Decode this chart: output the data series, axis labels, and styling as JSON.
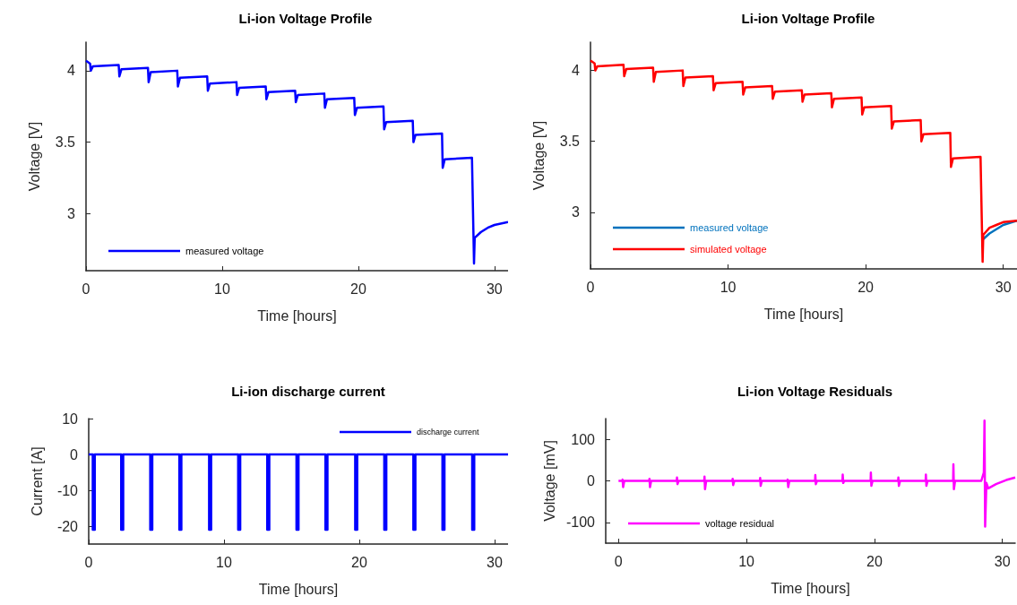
{
  "chart_data": [
    {
      "type": "line",
      "title": "Li-ion Voltage Profile",
      "xlabel": "Time [hours]",
      "ylabel": "Voltage [V]",
      "xlim": [
        0,
        31
      ],
      "ylim": [
        2.6,
        4.2
      ],
      "xticks": [
        0,
        10,
        20,
        30
      ],
      "yticks": [
        3,
        3.5,
        4
      ],
      "grid": false,
      "legend": "bottom left",
      "marker": "none",
      "line_style": "solid",
      "x": [
        0,
        0.3,
        0.35,
        0.5,
        2.4,
        2.45,
        2.6,
        4.55,
        4.6,
        4.75,
        6.7,
        6.75,
        6.9,
        8.9,
        8.95,
        9.1,
        11.05,
        11.1,
        11.25,
        13.2,
        13.25,
        13.4,
        15.36,
        15.41,
        15.56,
        17.5,
        17.55,
        17.7,
        19.7,
        19.75,
        19.9,
        21.85,
        21.9,
        22.05,
        24.0,
        24.05,
        24.2,
        26.15,
        26.2,
        26.35,
        28.35,
        28.5,
        28.55,
        29,
        29.5,
        30,
        31
      ],
      "series": [
        {
          "name": "measured voltage",
          "color": "#0000ff",
          "values": [
            4.07,
            4.05,
            4.0,
            4.03,
            4.04,
            3.96,
            4.01,
            4.02,
            3.92,
            3.99,
            4.0,
            3.89,
            3.95,
            3.96,
            3.86,
            3.91,
            3.92,
            3.83,
            3.88,
            3.89,
            3.8,
            3.85,
            3.86,
            3.78,
            3.83,
            3.84,
            3.74,
            3.8,
            3.81,
            3.69,
            3.74,
            3.75,
            3.59,
            3.64,
            3.65,
            3.5,
            3.55,
            3.56,
            3.32,
            3.38,
            3.39,
            2.65,
            2.83,
            2.87,
            2.9,
            2.92,
            2.94
          ]
        }
      ]
    },
    {
      "type": "line",
      "title": "Li-ion Voltage Profile",
      "xlabel": "Time [hours]",
      "ylabel": "Voltage [V]",
      "xlim": [
        0,
        31
      ],
      "ylim": [
        2.6,
        4.2
      ],
      "xticks": [
        0,
        10,
        20,
        30
      ],
      "yticks": [
        3,
        3.5,
        4
      ],
      "grid": false,
      "legend": "bottom left",
      "marker": "none",
      "line_style": "solid",
      "x": [
        0,
        0.3,
        0.35,
        0.5,
        2.4,
        2.45,
        2.6,
        4.55,
        4.6,
        4.75,
        6.7,
        6.75,
        6.9,
        8.9,
        8.95,
        9.1,
        11.05,
        11.1,
        11.25,
        13.2,
        13.25,
        13.4,
        15.36,
        15.41,
        15.56,
        17.5,
        17.55,
        17.7,
        19.7,
        19.75,
        19.9,
        21.85,
        21.9,
        22.05,
        24.0,
        24.05,
        24.2,
        26.15,
        26.2,
        26.35,
        28.35,
        28.5,
        28.55,
        29,
        29.5,
        30,
        31
      ],
      "series": [
        {
          "name": "measured voltage",
          "color": "#0072bd",
          "values": [
            null,
            null,
            null,
            null,
            null,
            null,
            null,
            null,
            null,
            null,
            null,
            null,
            null,
            null,
            null,
            null,
            null,
            null,
            null,
            null,
            null,
            null,
            null,
            null,
            null,
            null,
            null,
            null,
            null,
            null,
            null,
            null,
            null,
            null,
            null,
            null,
            null,
            null,
            null,
            null,
            null,
            null,
            2.81,
            2.85,
            2.88,
            2.91,
            2.94
          ]
        },
        {
          "name": "simulated voltage",
          "color": "#ff0000",
          "values": [
            4.07,
            4.05,
            4.0,
            4.03,
            4.04,
            3.96,
            4.01,
            4.02,
            3.92,
            3.99,
            4.0,
            3.89,
            3.95,
            3.96,
            3.86,
            3.91,
            3.92,
            3.83,
            3.88,
            3.89,
            3.8,
            3.85,
            3.86,
            3.78,
            3.83,
            3.84,
            3.74,
            3.8,
            3.81,
            3.69,
            3.74,
            3.75,
            3.59,
            3.64,
            3.65,
            3.5,
            3.55,
            3.56,
            3.32,
            3.38,
            3.39,
            2.65,
            2.84,
            2.89,
            2.91,
            2.93,
            2.94
          ]
        }
      ]
    },
    {
      "type": "line",
      "title": "Li-ion discharge current",
      "xlabel": "Time [hours]",
      "ylabel": "Current [A]",
      "xlim": [
        0,
        31
      ],
      "ylim": [
        -25,
        10
      ],
      "xticks": [
        0,
        10,
        20,
        30
      ],
      "yticks": [
        -20,
        -10,
        0,
        10
      ],
      "grid": false,
      "legend": "top right",
      "marker": "none",
      "line_style": "solid",
      "x": [
        0,
        0.3,
        0.3,
        0.45,
        0.45,
        2.4,
        2.4,
        2.55,
        2.55,
        4.55,
        4.55,
        4.7,
        4.7,
        6.7,
        6.7,
        6.85,
        6.85,
        8.9,
        8.9,
        9.05,
        9.05,
        11.05,
        11.05,
        11.2,
        11.2,
        13.2,
        13.2,
        13.35,
        13.35,
        15.36,
        15.36,
        15.51,
        15.51,
        17.5,
        17.5,
        17.65,
        17.65,
        19.7,
        19.7,
        19.85,
        19.85,
        21.85,
        21.85,
        22.0,
        22.0,
        24.0,
        24.0,
        24.15,
        24.15,
        26.15,
        26.15,
        26.3,
        26.3,
        28.35,
        28.35,
        28.5,
        28.5,
        31
      ],
      "series": [
        {
          "name": "discharge current",
          "color": "#0000ff",
          "values": [
            0,
            0,
            -21,
            -21,
            0,
            0,
            -21,
            -21,
            0,
            0,
            -21,
            -21,
            0,
            0,
            -21,
            -21,
            0,
            0,
            -21,
            -21,
            0,
            0,
            -21,
            -21,
            0,
            0,
            -21,
            -21,
            0,
            0,
            -21,
            -21,
            0,
            0,
            -21,
            -21,
            0,
            0,
            -21,
            -21,
            0,
            0,
            -21,
            -21,
            0,
            0,
            -21,
            -21,
            0,
            0,
            -21,
            -21,
            0,
            0,
            -21,
            -21,
            0,
            0
          ]
        }
      ]
    },
    {
      "type": "line",
      "title": "Li-ion Voltage Residuals",
      "xlabel": "Time [hours]",
      "ylabel": "Voltage [mV]",
      "xlim": [
        -1,
        31
      ],
      "ylim": [
        -150,
        150
      ],
      "xticks": [
        0,
        10,
        20,
        30
      ],
      "yticks": [
        -100,
        0,
        100
      ],
      "grid": false,
      "legend": "bottom left",
      "marker": "none",
      "line_style": "solid",
      "x": [
        0,
        0.3,
        0.32,
        0.36,
        0.45,
        2.4,
        2.42,
        2.46,
        2.55,
        4.55,
        4.57,
        4.61,
        4.7,
        6.7,
        6.72,
        6.76,
        6.85,
        8.9,
        8.92,
        8.96,
        9.05,
        11.05,
        11.07,
        11.11,
        11.2,
        13.2,
        13.22,
        13.26,
        13.35,
        15.36,
        15.38,
        15.42,
        15.51,
        17.5,
        17.52,
        17.56,
        17.65,
        19.7,
        19.72,
        19.76,
        19.85,
        21.85,
        21.87,
        21.91,
        22.0,
        24.0,
        24.02,
        24.06,
        24.15,
        26.15,
        26.17,
        26.21,
        26.3,
        28.35,
        28.55,
        28.6,
        28.65,
        28.75,
        28.9,
        29.5,
        30.3,
        31
      ],
      "series": [
        {
          "name": "voltage residual",
          "color": "#ff00ff",
          "values": [
            0,
            0,
            3,
            -15,
            0,
            0,
            5,
            -15,
            0,
            0,
            8,
            -8,
            0,
            0,
            10,
            -20,
            0,
            0,
            5,
            -10,
            0,
            0,
            7,
            -12,
            0,
            0,
            3,
            -15,
            0,
            0,
            14,
            -8,
            0,
            0,
            15,
            -5,
            0,
            0,
            20,
            -12,
            0,
            0,
            8,
            -12,
            0,
            0,
            15,
            -12,
            0,
            0,
            40,
            -20,
            0,
            0,
            20,
            145,
            -110,
            -5,
            -18,
            -8,
            2,
            8
          ]
        }
      ]
    }
  ]
}
